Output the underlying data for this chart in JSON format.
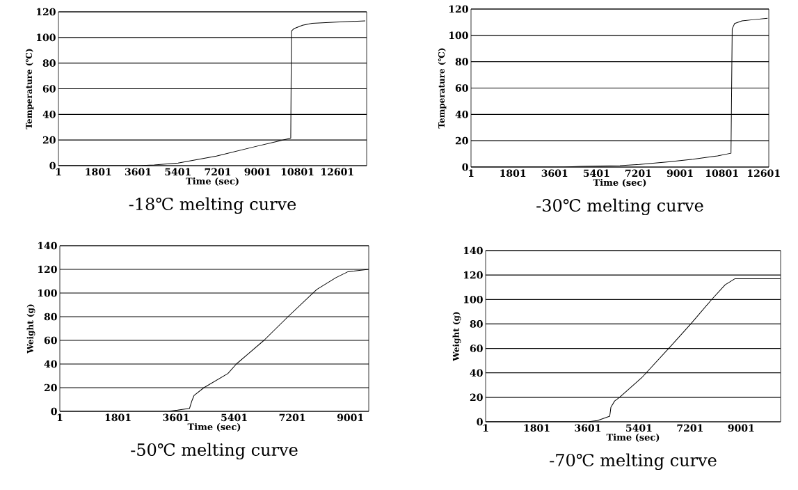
{
  "chart_data": [
    {
      "type": "line",
      "title": "-18℃ melting curve",
      "xlabel": "Time (sec)",
      "ylabel": "Temperature (℃)",
      "color": "#000000",
      "marker": "none",
      "grid": "y",
      "x": [
        1,
        3600,
        4330,
        5410,
        7140,
        8925,
        9845,
        10500,
        10530,
        10655,
        11034,
        11467,
        12548,
        13868
      ],
      "values": [
        0,
        0,
        0.5,
        2,
        7.5,
        15,
        18.7,
        21.5,
        105,
        107,
        109.5,
        111,
        112,
        113
      ],
      "xlim": [
        1,
        13930
      ],
      "ylim": [
        0,
        120
      ],
      "xticks": [
        1,
        1801,
        3601,
        5401,
        7201,
        9001,
        10801,
        12601
      ],
      "yticks": [
        0,
        20,
        40,
        60,
        80,
        100,
        120
      ]
    },
    {
      "type": "line",
      "title": "-30℃ melting curve",
      "xlabel": "Time (sec)",
      "ylabel": "Temperature (℃)",
      "color": "#000000",
      "marker": "none",
      "grid": "y",
      "x": [
        1,
        4000,
        4729,
        6411,
        7252,
        8513,
        9564,
        10615,
        11193,
        11245,
        11350,
        11665,
        12190,
        12768
      ],
      "values": [
        0,
        0,
        0.5,
        1,
        2,
        4,
        6,
        8.5,
        10.5,
        105,
        109,
        111,
        112,
        113
      ],
      "xlim": [
        1,
        12820
      ],
      "ylim": [
        0,
        120
      ],
      "xticks": [
        1,
        1801,
        3601,
        5401,
        7201,
        9001,
        10801,
        12601
      ],
      "yticks": [
        0,
        20,
        40,
        60,
        80,
        100,
        120
      ]
    },
    {
      "type": "line",
      "title": "-50℃ melting curve",
      "xlabel": "Time (sec)",
      "ylabel": "Weight (g)",
      "color": "#000000",
      "marker": "none",
      "grid": "y",
      "x": [
        1,
        3348,
        3646,
        4018,
        4093,
        4160,
        4464,
        5208,
        5468,
        6324,
        7068,
        7960,
        8555,
        8927,
        9075,
        9559
      ],
      "values": [
        0,
        0,
        1,
        2.5,
        9,
        13.5,
        20,
        32,
        40,
        60,
        80,
        103,
        113,
        118,
        118.5,
        120
      ],
      "xlim": [
        1,
        9570
      ],
      "ylim": [
        0,
        140
      ],
      "xticks": [
        1,
        1801,
        3601,
        5401,
        7201,
        9001
      ],
      "yticks": [
        0,
        20,
        40,
        60,
        80,
        100,
        120,
        140
      ]
    },
    {
      "type": "line",
      "title": "-70℃ melting curve",
      "xlabel": "Time (sec)",
      "ylabel": "Weight (g)",
      "color": "#000000",
      "marker": "none",
      "grid": "y",
      "x": [
        1,
        3592,
        3939,
        4371,
        4414,
        4545,
        4718,
        5497,
        6448,
        7227,
        7963,
        8438,
        8784,
        10386
      ],
      "values": [
        0,
        0,
        1,
        4.5,
        12,
        17,
        20,
        36,
        60,
        80,
        100,
        112,
        117,
        117
      ],
      "xlim": [
        1,
        10390
      ],
      "ylim": [
        0,
        140
      ],
      "xticks": [
        1,
        1801,
        3601,
        5401,
        7201,
        9001
      ],
      "yticks": [
        0,
        20,
        40,
        60,
        80,
        100,
        120,
        140
      ]
    }
  ]
}
